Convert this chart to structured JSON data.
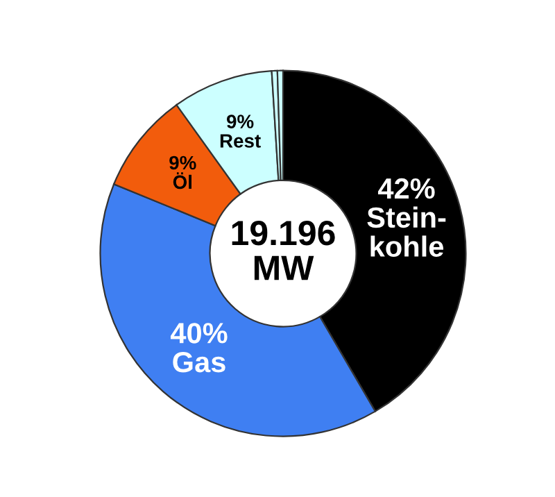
{
  "chart_data": {
    "type": "donut",
    "categories": [
      "Stein-\nkohle",
      "Gas",
      "Öl",
      "Rest",
      null,
      null
    ],
    "values": [
      42,
      40,
      9,
      9,
      0.5,
      0.5
    ],
    "colors": [
      "#000000",
      "#3f7ff2",
      "#f25c0c",
      "#ccffff",
      "#ccffff",
      "#ccffff"
    ],
    "value_labels": [
      "42%",
      "40%",
      "9%",
      "9%",
      null,
      null
    ],
    "annotations": [
      "19.196\nMW"
    ]
  }
}
